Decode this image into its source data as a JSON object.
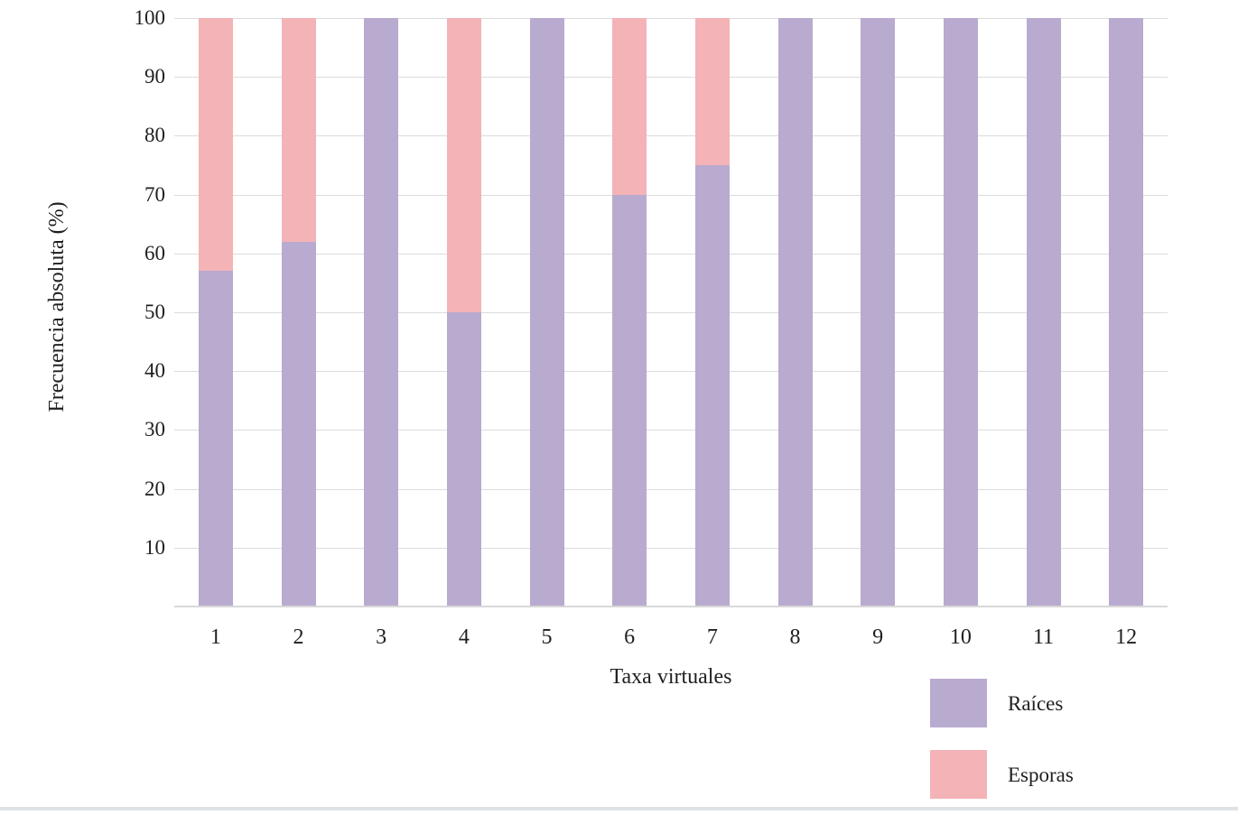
{
  "page": {
    "background_color": "#ffffff",
    "bottom_divider_color": "#dfe2e5"
  },
  "chart_data": {
    "type": "bar",
    "stacked": true,
    "title": "",
    "xlabel": "Taxa virtuales",
    "ylabel": "Frecuencia absoluta (%)",
    "categories": [
      "1",
      "2",
      "3",
      "4",
      "5",
      "6",
      "7",
      "8",
      "9",
      "10",
      "11",
      "12"
    ],
    "series": [
      {
        "name": "Raíces",
        "color": "#b9aacf",
        "values": [
          57,
          62,
          100,
          50,
          100,
          70,
          75,
          100,
          100,
          100,
          100,
          100
        ]
      },
      {
        "name": "Esporas",
        "color": "#f3b3b7",
        "values": [
          43,
          38,
          0,
          50,
          0,
          30,
          25,
          0,
          0,
          0,
          0,
          0
        ]
      }
    ],
    "ylim": [
      0,
      100
    ],
    "yticks": [
      10,
      20,
      30,
      40,
      50,
      60,
      70,
      80,
      90,
      100
    ],
    "grid": true,
    "gridline_color": "#dcdcdc",
    "axis_line_color": "#d8d8d8",
    "text_color": "#1f1f1f",
    "legend_position": "bottom-right"
  }
}
